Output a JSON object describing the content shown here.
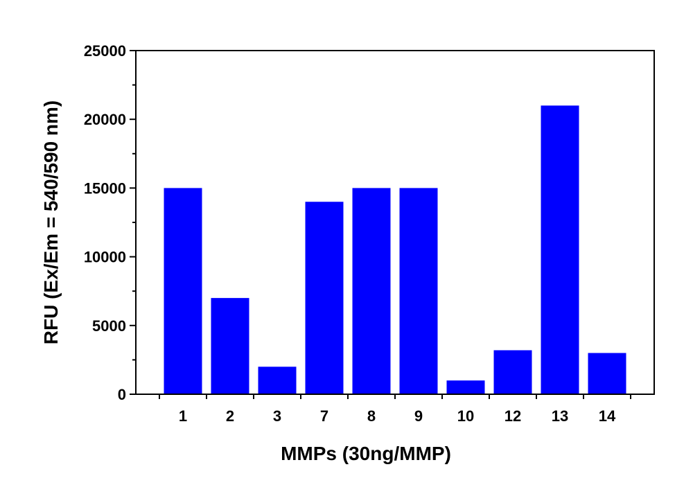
{
  "chart_data": {
    "type": "bar",
    "title": "",
    "xlabel": "MMPs (30ng/MMP)",
    "ylabel": "RFU (Ex/Em = 540/590 nm)",
    "categories": [
      "1",
      "2",
      "3",
      "7",
      "8",
      "9",
      "10",
      "12",
      "13",
      "14"
    ],
    "values": [
      15000,
      7000,
      2000,
      14000,
      15000,
      15000,
      1000,
      3200,
      21000,
      3000
    ],
    "ylim": [
      0,
      25000
    ],
    "yticks": [
      "0",
      "5000",
      "10000",
      "15000",
      "20000",
      "25000"
    ],
    "yticks_values": [
      0,
      5000,
      10000,
      15000,
      20000,
      25000
    ],
    "grid": false,
    "legend": "none",
    "bar_color": "#0000FF"
  }
}
